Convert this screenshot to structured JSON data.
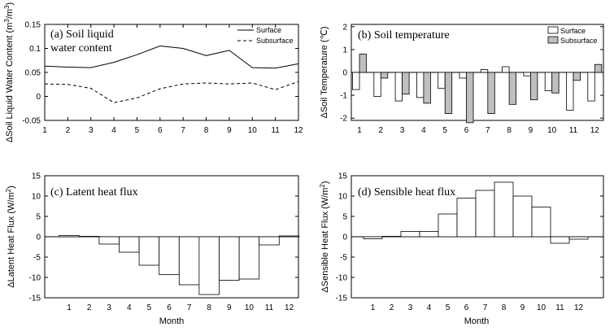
{
  "chart_data": [
    {
      "type": "line",
      "title_lines": [
        "(a) Soil liquid",
        "water content"
      ],
      "ylabel_parts": [
        "ΔSoil Liquid Water Content (m",
        "3",
        "/m",
        "3",
        ")"
      ],
      "xlabel": "",
      "x": [
        1,
        2,
        3,
        4,
        5,
        6,
        7,
        8,
        9,
        10,
        11,
        12
      ],
      "ylim": [
        -0.05,
        0.15
      ],
      "yticks": [
        -0.05,
        0,
        0.05,
        0.1,
        0.15
      ],
      "ytick_labels": [
        "-0.05",
        "0",
        "0.05",
        "0.1",
        "0.15"
      ],
      "legend_position": "top-right",
      "series": [
        {
          "name": "Surface",
          "style": "solid",
          "values": [
            0.063,
            0.061,
            0.06,
            0.071,
            0.087,
            0.105,
            0.1,
            0.085,
            0.096,
            0.06,
            0.059,
            0.068
          ]
        },
        {
          "name": "Subsurface",
          "style": "dashed",
          "values": [
            0.026,
            0.025,
            0.017,
            -0.013,
            -0.003,
            0.016,
            0.026,
            0.028,
            0.026,
            0.028,
            0.014,
            0.031
          ]
        }
      ]
    },
    {
      "type": "bar",
      "title": "(b) Soil temperature",
      "ylabel": "ΔSoil Temperature (℃)",
      "xlabel": "",
      "categories": [
        "1",
        "2",
        "3",
        "4",
        "5",
        "6",
        "7",
        "8",
        "9",
        "10",
        "11",
        "12"
      ],
      "ylim": [
        -2.1,
        2.1
      ],
      "yticks": [
        -2,
        -1,
        0,
        1,
        2
      ],
      "ytick_labels": [
        "-2",
        "-1",
        "0",
        "1",
        "2"
      ],
      "legend_position": "top-right",
      "series": [
        {
          "name": "Surface",
          "color": "#ffffff",
          "values": [
            -0.75,
            -1.05,
            -1.25,
            -1.1,
            -0.7,
            -0.25,
            0.12,
            0.25,
            -0.15,
            -0.8,
            -1.65,
            -1.25
          ]
        },
        {
          "name": "Subsurface",
          "color": "#bfbfbf",
          "values": [
            0.8,
            -0.25,
            -0.95,
            -1.35,
            -1.8,
            -2.2,
            -1.8,
            -1.4,
            -1.2,
            -0.9,
            -0.35,
            0.35
          ]
        }
      ]
    },
    {
      "type": "bar",
      "title": "(c) Latent heat flux",
      "ylabel_parts": [
        "ΔLatent Heat Flux (W/m",
        "2",
        ")"
      ],
      "xlabel": "Month",
      "categories": [
        "1",
        "2",
        "3",
        "4",
        "5",
        "6",
        "7",
        "8",
        "9",
        "10",
        "11",
        "12"
      ],
      "ylim": [
        -15,
        15
      ],
      "yticks": [
        -15,
        -10,
        -5,
        0,
        5,
        10,
        15
      ],
      "ytick_labels": [
        "-15",
        "-10",
        "-5",
        "0",
        "5",
        "10",
        "15"
      ],
      "series": [
        {
          "name": "Latent heat flux",
          "color": "#ffffff",
          "values": [
            0.3,
            0.1,
            -1.8,
            -3.8,
            -7.0,
            -9.3,
            -11.8,
            -14.2,
            -10.7,
            -10.4,
            -2.0,
            0.2
          ]
        }
      ]
    },
    {
      "type": "bar",
      "title": "(d) Sensible heat flux",
      "ylabel_parts": [
        "ΔSensible Heat Flux (W/m",
        "2",
        ")"
      ],
      "xlabel": "Month",
      "categories": [
        "1",
        "2",
        "3",
        "4",
        "5",
        "6",
        "7",
        "8",
        "9",
        "10",
        "11",
        "12"
      ],
      "ylim": [
        -15,
        15
      ],
      "yticks": [
        -15,
        -10,
        -5,
        0,
        5,
        10,
        15
      ],
      "ytick_labels": [
        "-15",
        "-10",
        "-5",
        "0",
        "5",
        "10",
        "15"
      ],
      "series": [
        {
          "name": "Sensible heat flux",
          "color": "#ffffff",
          "values": [
            -0.5,
            0.1,
            1.3,
            1.3,
            5.6,
            9.5,
            11.4,
            13.4,
            10.0,
            7.3,
            -1.6,
            -0.6
          ]
        }
      ]
    }
  ]
}
